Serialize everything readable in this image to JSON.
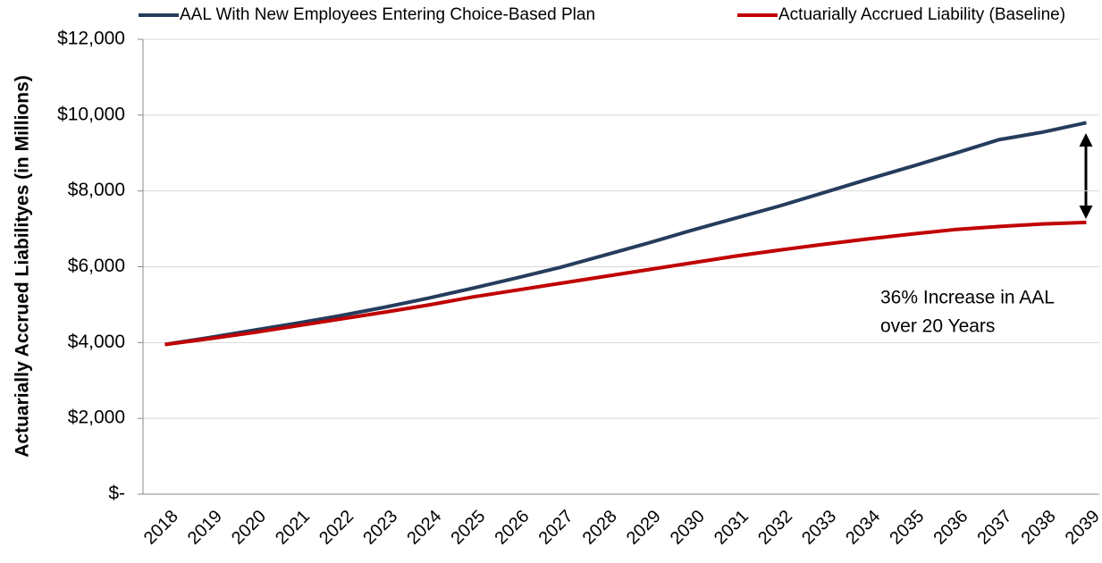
{
  "chart_data": {
    "type": "line",
    "y_label": "Actuarially Accrued Liabilityes (in Millions)",
    "categories": [
      "2018",
      "2019",
      "2020",
      "2021",
      "2022",
      "2023",
      "2024",
      "2025",
      "2026",
      "2027",
      "2028",
      "2029",
      "2030",
      "2031",
      "2032",
      "2033",
      "2034",
      "2035",
      "2036",
      "2037",
      "2038",
      "2039"
    ],
    "series": [
      {
        "name": "AAL With New Employees Entering Choice-Based Plan",
        "color": "#253c5c",
        "values": [
          3950,
          4130,
          4320,
          4510,
          4710,
          4930,
          5170,
          5430,
          5700,
          5980,
          6300,
          6620,
          6960,
          7280,
          7600,
          7950,
          8300,
          8640,
          8990,
          9350,
          9550,
          9800
        ]
      },
      {
        "name": "Actuarially Accrued Liability (Baseline)",
        "color": "#c00000",
        "values": [
          3950,
          4100,
          4260,
          4440,
          4620,
          4800,
          4990,
          5200,
          5380,
          5560,
          5740,
          5920,
          6100,
          6280,
          6440,
          6590,
          6730,
          6860,
          6980,
          7060,
          7130,
          7170
        ]
      }
    ],
    "ylim": [
      0,
      12000
    ],
    "yticks": [
      {
        "value": 0,
        "label": "$-"
      },
      {
        "value": 2000,
        "label": "$2,000"
      },
      {
        "value": 4000,
        "label": "$4,000"
      },
      {
        "value": 6000,
        "label": "$6,000"
      },
      {
        "value": 8000,
        "label": "$8,000"
      },
      {
        "value": 10000,
        "label": "$10,000"
      },
      {
        "value": 12000,
        "label": "$12,000"
      }
    ],
    "grid": true,
    "legend": "top",
    "annotation": [
      "36% Increase in AAL",
      "over 20 Years"
    ]
  }
}
